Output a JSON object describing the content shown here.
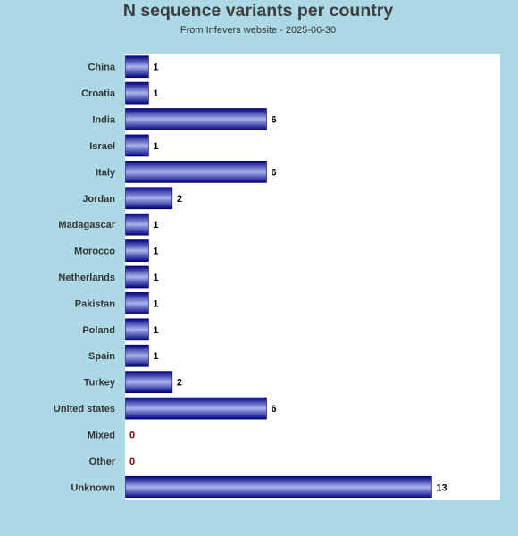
{
  "chart_data": {
    "type": "bar",
    "orientation": "horizontal",
    "title": "N sequence variants per country",
    "subtitle": "From Infevers website - 2025-06-30",
    "categories": [
      "China",
      "Croatia",
      "India",
      "Israel",
      "Italy",
      "Jordan",
      "Madagascar",
      "Morocco",
      "Netherlands",
      "Pakistan",
      "Poland",
      "Spain",
      "Turkey",
      "United states",
      "Mixed",
      "Other",
      "Unknown"
    ],
    "values": [
      1,
      1,
      6,
      1,
      6,
      2,
      1,
      1,
      1,
      1,
      1,
      1,
      2,
      6,
      0,
      0,
      13
    ],
    "data_labels": [
      "1",
      "1",
      "6",
      "1",
      "6",
      "2",
      "1",
      "1",
      "1",
      "1",
      "1",
      "1",
      "2",
      "6",
      "0",
      "0",
      "13"
    ],
    "xlim": [
      0,
      15.9
    ],
    "grid": false,
    "legend": "none",
    "colors": {
      "background": "#add8e6",
      "plot_background": "#ffffff",
      "bar_dark": "#000080",
      "bar_light": "#aab4ee",
      "value_label": "#000000",
      "zero_label": "#8b0000",
      "category_label": "#333333"
    }
  }
}
